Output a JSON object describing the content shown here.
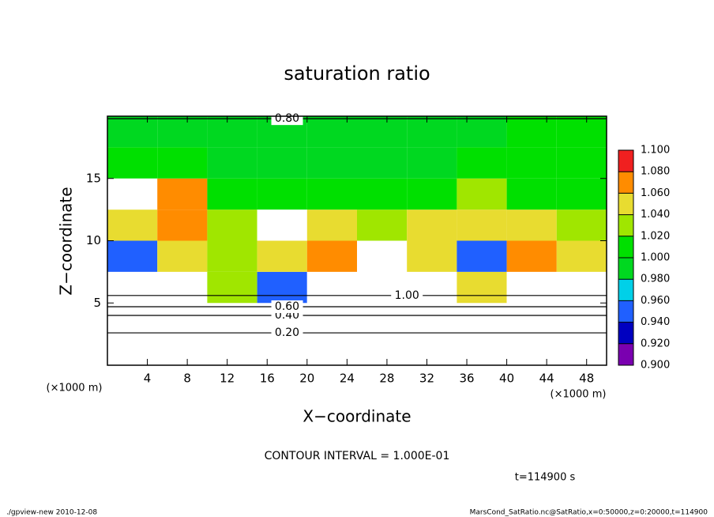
{
  "chart_data": {
    "type": "contour",
    "title": "saturation ratio",
    "xlabel": "X−coordinate",
    "ylabel": "Z−coordinate",
    "xunit": "(×1000 m)",
    "yunit": "(×1000 m)",
    "xlim": [
      0,
      50
    ],
    "xticks": [
      4,
      8,
      12,
      16,
      20,
      24,
      28,
      32,
      36,
      40,
      44,
      48
    ],
    "ylim": [
      0,
      20
    ],
    "yticks": [
      5,
      10,
      15
    ],
    "x": [
      2.5,
      7.5,
      12.5,
      17.5,
      22.5,
      27.5,
      32.5,
      37.5,
      42.5,
      47.5
    ],
    "y": [
      1.25,
      3.75,
      6.25,
      8.75,
      11.25,
      13.75,
      16.25,
      18.75
    ],
    "z": [
      [
        0.2,
        0.2,
        0.2,
        0.2,
        0.2,
        0.2,
        0.2,
        0.2,
        0.2,
        0.2
      ],
      [
        0.5,
        0.5,
        0.5,
        0.5,
        0.5,
        0.5,
        0.5,
        0.5,
        0.5,
        0.5
      ],
      [
        1.12,
        1.12,
        1.03,
        0.95,
        1.12,
        1.12,
        1.12,
        1.05,
        1.12,
        1.12
      ],
      [
        0.94,
        1.05,
        1.03,
        1.04,
        1.06,
        1.12,
        1.05,
        0.94,
        1.06,
        1.05
      ],
      [
        1.04,
        1.06,
        1.02,
        1.12,
        1.05,
        1.03,
        1.04,
        1.04,
        1.05,
        1.02
      ],
      [
        1.12,
        1.06,
        1.01,
        1.0,
        1.0,
        1.0,
        1.01,
        1.02,
        1.01,
        1.01
      ],
      [
        1.01,
        1.0,
        0.99,
        0.99,
        0.99,
        0.99,
        0.99,
        1.0,
        1.01,
        1.0
      ],
      [
        0.99,
        0.99,
        0.99,
        0.99,
        0.99,
        0.99,
        0.99,
        0.99,
        1.0,
        1.0
      ]
    ],
    "levels": [
      {
        "value": 0.9,
        "label": "0.900"
      },
      {
        "value": 0.92,
        "label": "0.920"
      },
      {
        "value": 0.94,
        "label": "0.940"
      },
      {
        "value": 0.96,
        "label": "0.960"
      },
      {
        "value": 0.98,
        "label": "0.980"
      },
      {
        "value": 1.0,
        "label": "1.000"
      },
      {
        "value": 1.02,
        "label": "1.020"
      },
      {
        "value": 1.04,
        "label": "1.040"
      },
      {
        "value": 1.06,
        "label": "1.060"
      },
      {
        "value": 1.08,
        "label": "1.080"
      },
      {
        "value": 1.1,
        "label": "1.100"
      }
    ],
    "level_colors": [
      "#7a00b0",
      "#0000c0",
      "#2060ff",
      "#00d0e8",
      "#00d820",
      "#00e000",
      "#a0e600",
      "#e8dc30",
      "#ff8c00",
      "#f02020"
    ],
    "contours": [
      {
        "label": "0.20",
        "x": 18,
        "y": 2.6
      },
      {
        "label": "0.40",
        "x": 18,
        "y": 4.0
      },
      {
        "label": "0.60",
        "x": 18,
        "y": 4.7
      },
      {
        "label": "0.80",
        "x": 18,
        "y": 19.8
      },
      {
        "label": "1.00",
        "x": 30,
        "y": 5.6
      }
    ],
    "contour_interval": "CONTOUR INTERVAL = 1.000E-01",
    "time_label": "t=114900 s",
    "footer_left": "./gpview-new  2010-12-08",
    "footer_right": "MarsCond_SatRatio.nc@SatRatio,x=0:50000,z=0:20000,t=114900"
  }
}
